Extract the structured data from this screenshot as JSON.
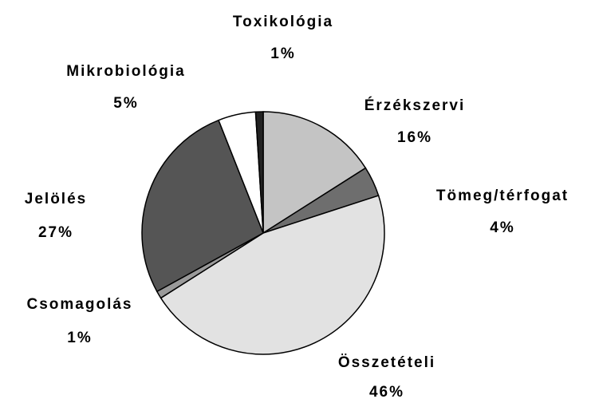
{
  "chart_data": {
    "type": "pie",
    "categories": [
      "Érzékszervi",
      "Tömeg/térfogat",
      "Összetételi",
      "Csomagolás",
      "Jelölés",
      "Mikrobiológia",
      "Toxikológia"
    ],
    "values": [
      16,
      4,
      46,
      1,
      27,
      5,
      1
    ],
    "value_labels": [
      "16%",
      "4%",
      "46%",
      "1%",
      "27%",
      "5%",
      "1%"
    ],
    "colors": [
      "#c4c4c4",
      "#6e6e6e",
      "#e2e2e2",
      "#9a9a9a",
      "#555555",
      "#ffffff",
      "#222222"
    ]
  }
}
